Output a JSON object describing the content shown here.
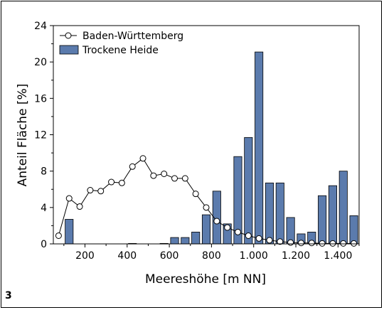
{
  "figure_label": "3",
  "chart_data": {
    "type": "bar",
    "xlabel": "Meereshöhe [m NN]",
    "ylabel": "Anteil Fläche [%]",
    "xlim": [
      50,
      1500
    ],
    "ylim": [
      0,
      24
    ],
    "xticks": [
      200,
      400,
      600,
      800,
      1000,
      1200,
      1400
    ],
    "xtick_labels": [
      "200",
      "400",
      "600",
      "800",
      "1.000",
      "1.200",
      "1.400"
    ],
    "yticks": [
      0,
      4,
      8,
      12,
      16,
      20,
      24
    ],
    "ytick_labels": [
      "0",
      "4",
      "8",
      "12",
      "16",
      "20",
      "24"
    ],
    "grid": false,
    "legend_position": "top-left",
    "bar_width": 38,
    "series": [
      {
        "name": "Baden-Württemberg",
        "type": "line",
        "marker": "circle",
        "color": "#000000",
        "x": [
          75,
          125,
          175,
          225,
          275,
          325,
          375,
          425,
          475,
          525,
          575,
          625,
          675,
          725,
          775,
          825,
          875,
          925,
          975,
          1025,
          1075,
          1125,
          1175,
          1225,
          1275,
          1325,
          1375,
          1425,
          1475
        ],
        "values": [
          0.9,
          5.0,
          4.1,
          5.9,
          5.8,
          6.8,
          6.7,
          8.5,
          9.4,
          7.5,
          7.7,
          7.2,
          7.2,
          5.5,
          4.0,
          2.5,
          1.8,
          1.3,
          0.9,
          0.6,
          0.4,
          0.25,
          0.15,
          0.1,
          0.1,
          0.05,
          0.05,
          0.05,
          0.05
        ]
      },
      {
        "name": "Trockene Heide",
        "type": "bar",
        "color": "#5b7bad",
        "x": [
          125,
          175,
          225,
          275,
          325,
          375,
          425,
          475,
          525,
          575,
          625,
          675,
          725,
          775,
          825,
          875,
          925,
          975,
          1025,
          1075,
          1125,
          1175,
          1225,
          1275,
          1325,
          1375,
          1425,
          1475
        ],
        "values": [
          2.7,
          0,
          0,
          0,
          0,
          0,
          0.05,
          0,
          0,
          0.05,
          0.7,
          0.7,
          1.3,
          3.2,
          5.8,
          2.2,
          9.6,
          11.7,
          21.1,
          6.7,
          6.7,
          2.9,
          1.1,
          1.3,
          5.3,
          6.4,
          8.0,
          3.1
        ]
      }
    ]
  }
}
